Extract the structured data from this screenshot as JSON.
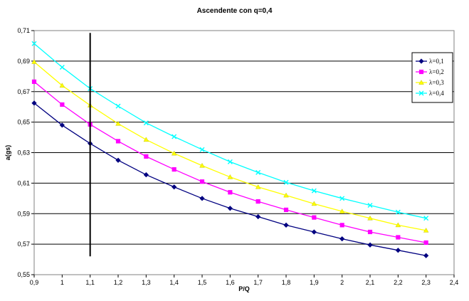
{
  "chart_data": {
    "type": "line",
    "title": "Ascendente con q=0,4",
    "xlabel": "P/Q",
    "ylabel": "a(gs)",
    "xlim": [
      0.9,
      2.4
    ],
    "ylim": [
      0.55,
      0.71
    ],
    "x_ticks": [
      "0,9",
      "1",
      "1,1",
      "1,2",
      "1,3",
      "1,4",
      "1,5",
      "1,6",
      "1,7",
      "1,8",
      "1,9",
      "2",
      "2,1",
      "2,2",
      "2,3",
      "2,4"
    ],
    "y_ticks": [
      "0,55",
      "0,57",
      "0,59",
      "0,61",
      "0,63",
      "0,65",
      "0,67",
      "0,69",
      "0,71"
    ],
    "grid": "horizontal",
    "legend_position": "right",
    "vertical_marker_x": 1.1,
    "vertical_marker_range": [
      0.562,
      0.7085
    ],
    "x": [
      0.9,
      1.0,
      1.1,
      1.2,
      1.3,
      1.4,
      1.5,
      1.6,
      1.7,
      1.8,
      1.9,
      2.0,
      2.1,
      2.2,
      2.3
    ],
    "series": [
      {
        "name": "λ=0,1",
        "color": "#000080",
        "marker": "diamond",
        "values": [
          0.6625,
          0.648,
          0.636,
          0.625,
          0.6155,
          0.6075,
          0.6,
          0.5935,
          0.588,
          0.5825,
          0.578,
          0.5735,
          0.5695,
          0.566,
          0.5625
        ]
      },
      {
        "name": "λ=0,2",
        "color": "#ff00ff",
        "marker": "square",
        "values": [
          0.6765,
          0.6615,
          0.6485,
          0.6375,
          0.6275,
          0.619,
          0.611,
          0.604,
          0.598,
          0.5925,
          0.5875,
          0.5825,
          0.578,
          0.5745,
          0.571
        ]
      },
      {
        "name": "λ=0,3",
        "color": "#ffff00",
        "marker": "triangle",
        "values": [
          0.6895,
          0.674,
          0.661,
          0.649,
          0.6385,
          0.6295,
          0.6215,
          0.614,
          0.6075,
          0.602,
          0.5965,
          0.5915,
          0.587,
          0.5825,
          0.579
        ]
      },
      {
        "name": "λ=0,4",
        "color": "#00ffff",
        "marker": "x",
        "values": [
          0.7015,
          0.686,
          0.672,
          0.6605,
          0.6495,
          0.6405,
          0.632,
          0.624,
          0.617,
          0.6105,
          0.605,
          0.6,
          0.5955,
          0.591,
          0.587
        ]
      }
    ]
  }
}
